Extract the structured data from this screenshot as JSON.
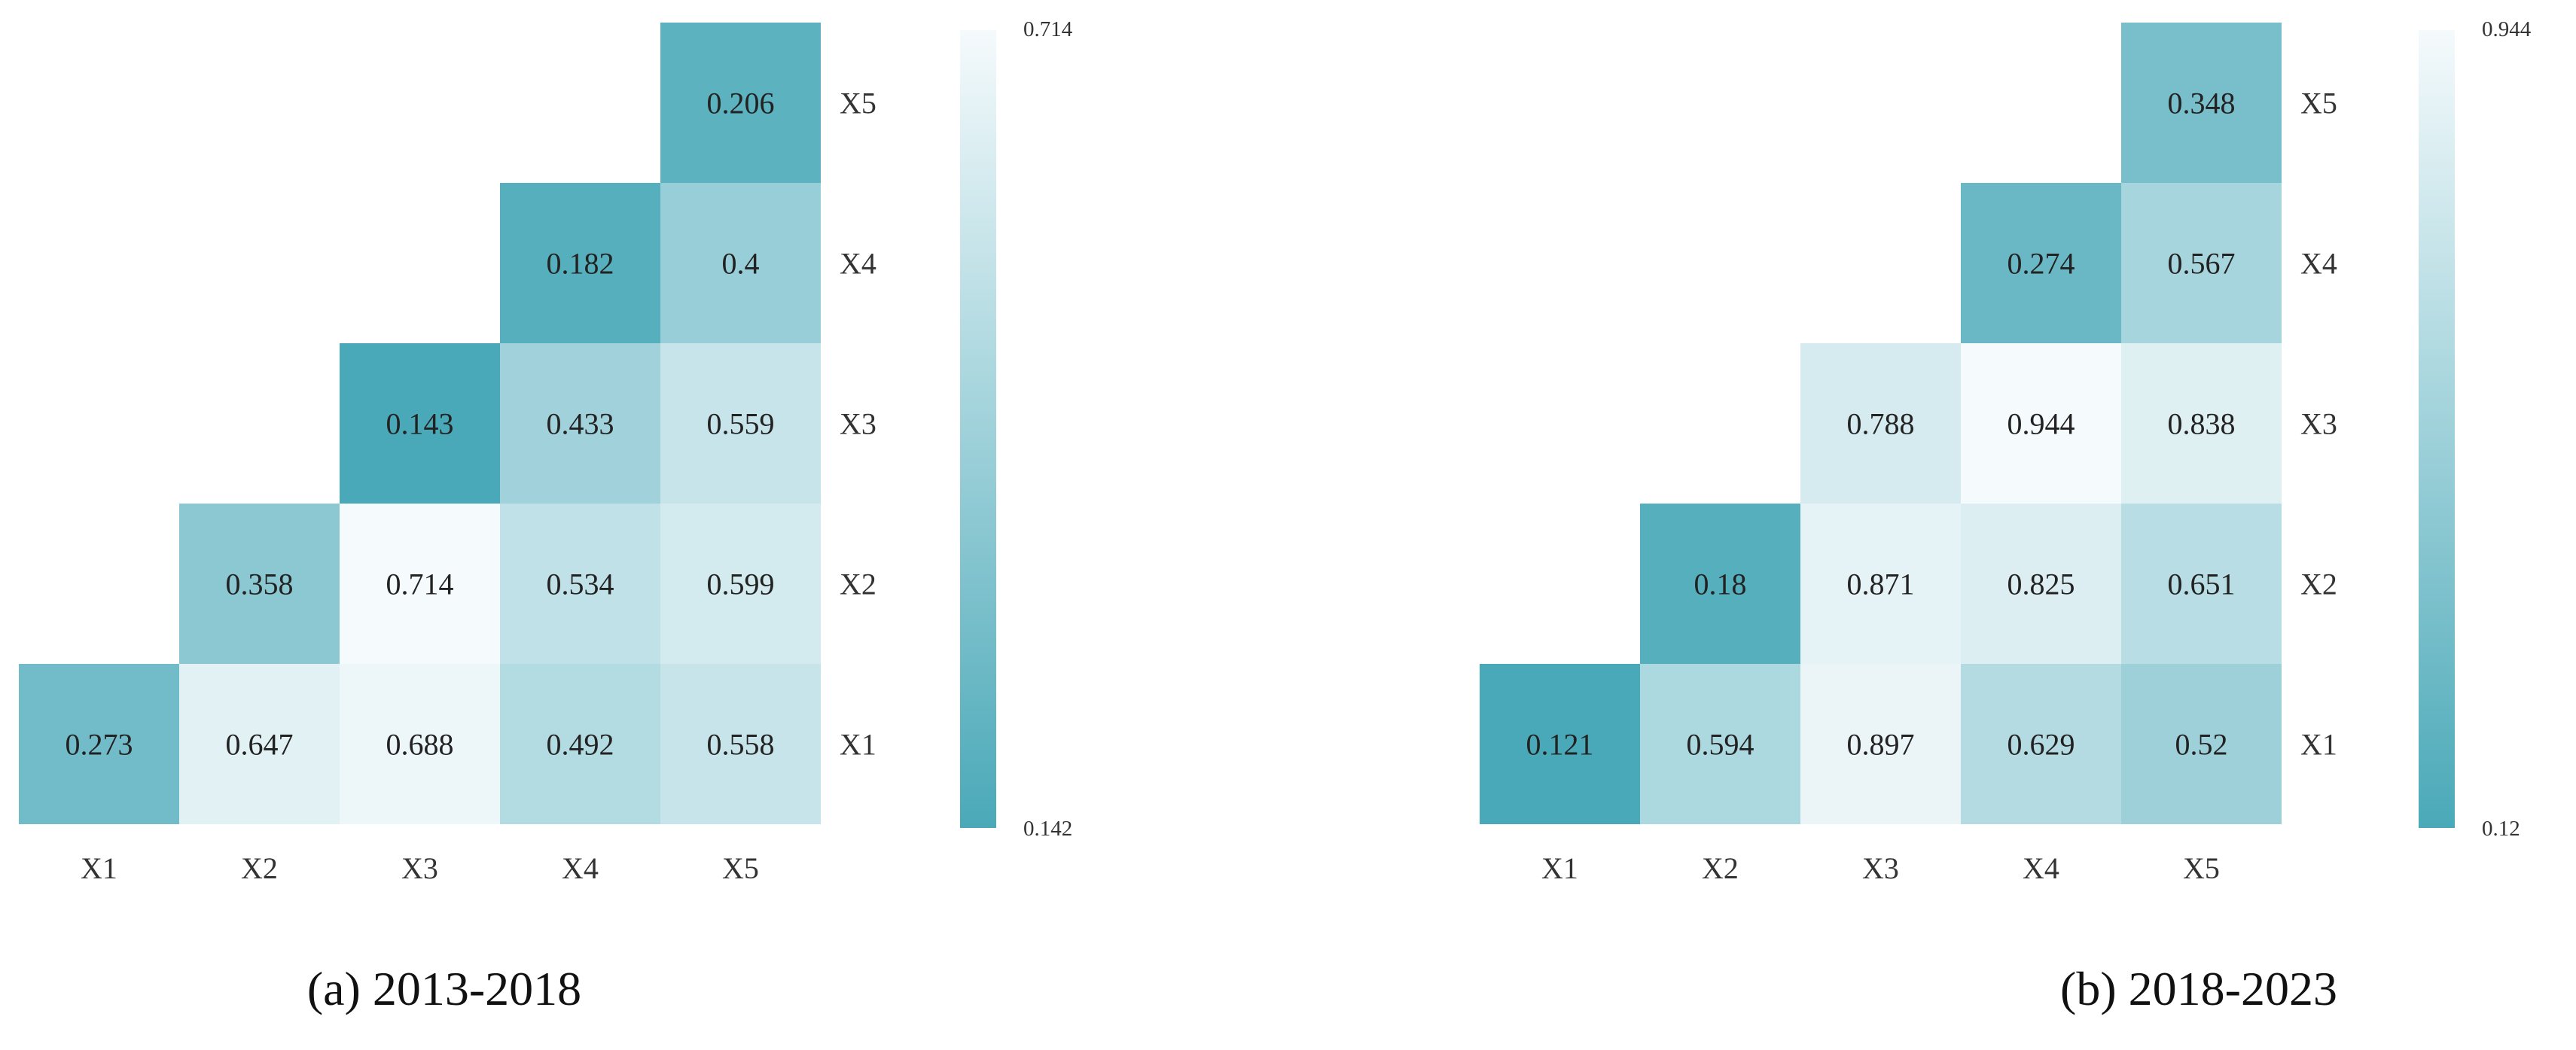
{
  "chart_data": [
    {
      "type": "heatmap",
      "caption": "(a) 2013-2018",
      "x_ticks": [
        "X1",
        "X2",
        "X3",
        "X4",
        "X5"
      ],
      "y_ticks": [
        "X5",
        "X4",
        "X3",
        "X2",
        "X1"
      ],
      "cells": [
        {
          "row": "X5",
          "col": "X5",
          "value": "0.206"
        },
        {
          "row": "X4",
          "col": "X4",
          "value": "0.182"
        },
        {
          "row": "X4",
          "col": "X5",
          "value": "0.4"
        },
        {
          "row": "X3",
          "col": "X3",
          "value": "0.143"
        },
        {
          "row": "X3",
          "col": "X4",
          "value": "0.433"
        },
        {
          "row": "X3",
          "col": "X5",
          "value": "0.559"
        },
        {
          "row": "X2",
          "col": "X2",
          "value": "0.358"
        },
        {
          "row": "X2",
          "col": "X3",
          "value": "0.714"
        },
        {
          "row": "X2",
          "col": "X4",
          "value": "0.534"
        },
        {
          "row": "X2",
          "col": "X5",
          "value": "0.599"
        },
        {
          "row": "X1",
          "col": "X1",
          "value": "0.273"
        },
        {
          "row": "X1",
          "col": "X2",
          "value": "0.647"
        },
        {
          "row": "X1",
          "col": "X3",
          "value": "0.688"
        },
        {
          "row": "X1",
          "col": "X4",
          "value": "0.492"
        },
        {
          "row": "X1",
          "col": "X5",
          "value": "0.558"
        }
      ],
      "colorbar": {
        "max_label": "0.714",
        "min_label": "0.142",
        "max": 0.714,
        "min": 0.142
      }
    },
    {
      "type": "heatmap",
      "caption": "(b) 2018-2023",
      "x_ticks": [
        "X1",
        "X2",
        "X3",
        "X4",
        "X5"
      ],
      "y_ticks": [
        "X5",
        "X4",
        "X3",
        "X2",
        "X1"
      ],
      "cells": [
        {
          "row": "X5",
          "col": "X5",
          "value": "0.348"
        },
        {
          "row": "X4",
          "col": "X4",
          "value": "0.274"
        },
        {
          "row": "X4",
          "col": "X5",
          "value": "0.567"
        },
        {
          "row": "X3",
          "col": "X3",
          "value": "0.788"
        },
        {
          "row": "X3",
          "col": "X4",
          "value": "0.944"
        },
        {
          "row": "X3",
          "col": "X5",
          "value": "0.838"
        },
        {
          "row": "X2",
          "col": "X2",
          "value": "0.18"
        },
        {
          "row": "X2",
          "col": "X3",
          "value": "0.871"
        },
        {
          "row": "X2",
          "col": "X4",
          "value": "0.825"
        },
        {
          "row": "X2",
          "col": "X5",
          "value": "0.651"
        },
        {
          "row": "X1",
          "col": "X1",
          "value": "0.121"
        },
        {
          "row": "X1",
          "col": "X2",
          "value": "0.594"
        },
        {
          "row": "X1",
          "col": "X3",
          "value": "0.897"
        },
        {
          "row": "X1",
          "col": "X4",
          "value": "0.629"
        },
        {
          "row": "X1",
          "col": "X5",
          "value": "0.52"
        }
      ],
      "colorbar": {
        "max_label": "0.944",
        "min_label": "0.12",
        "max": 0.944,
        "min": 0.12
      }
    }
  ],
  "colors": {
    "low": "#4aa9b8",
    "high": "#f5fafc",
    "text": "#222222",
    "background": "#ffffff"
  }
}
